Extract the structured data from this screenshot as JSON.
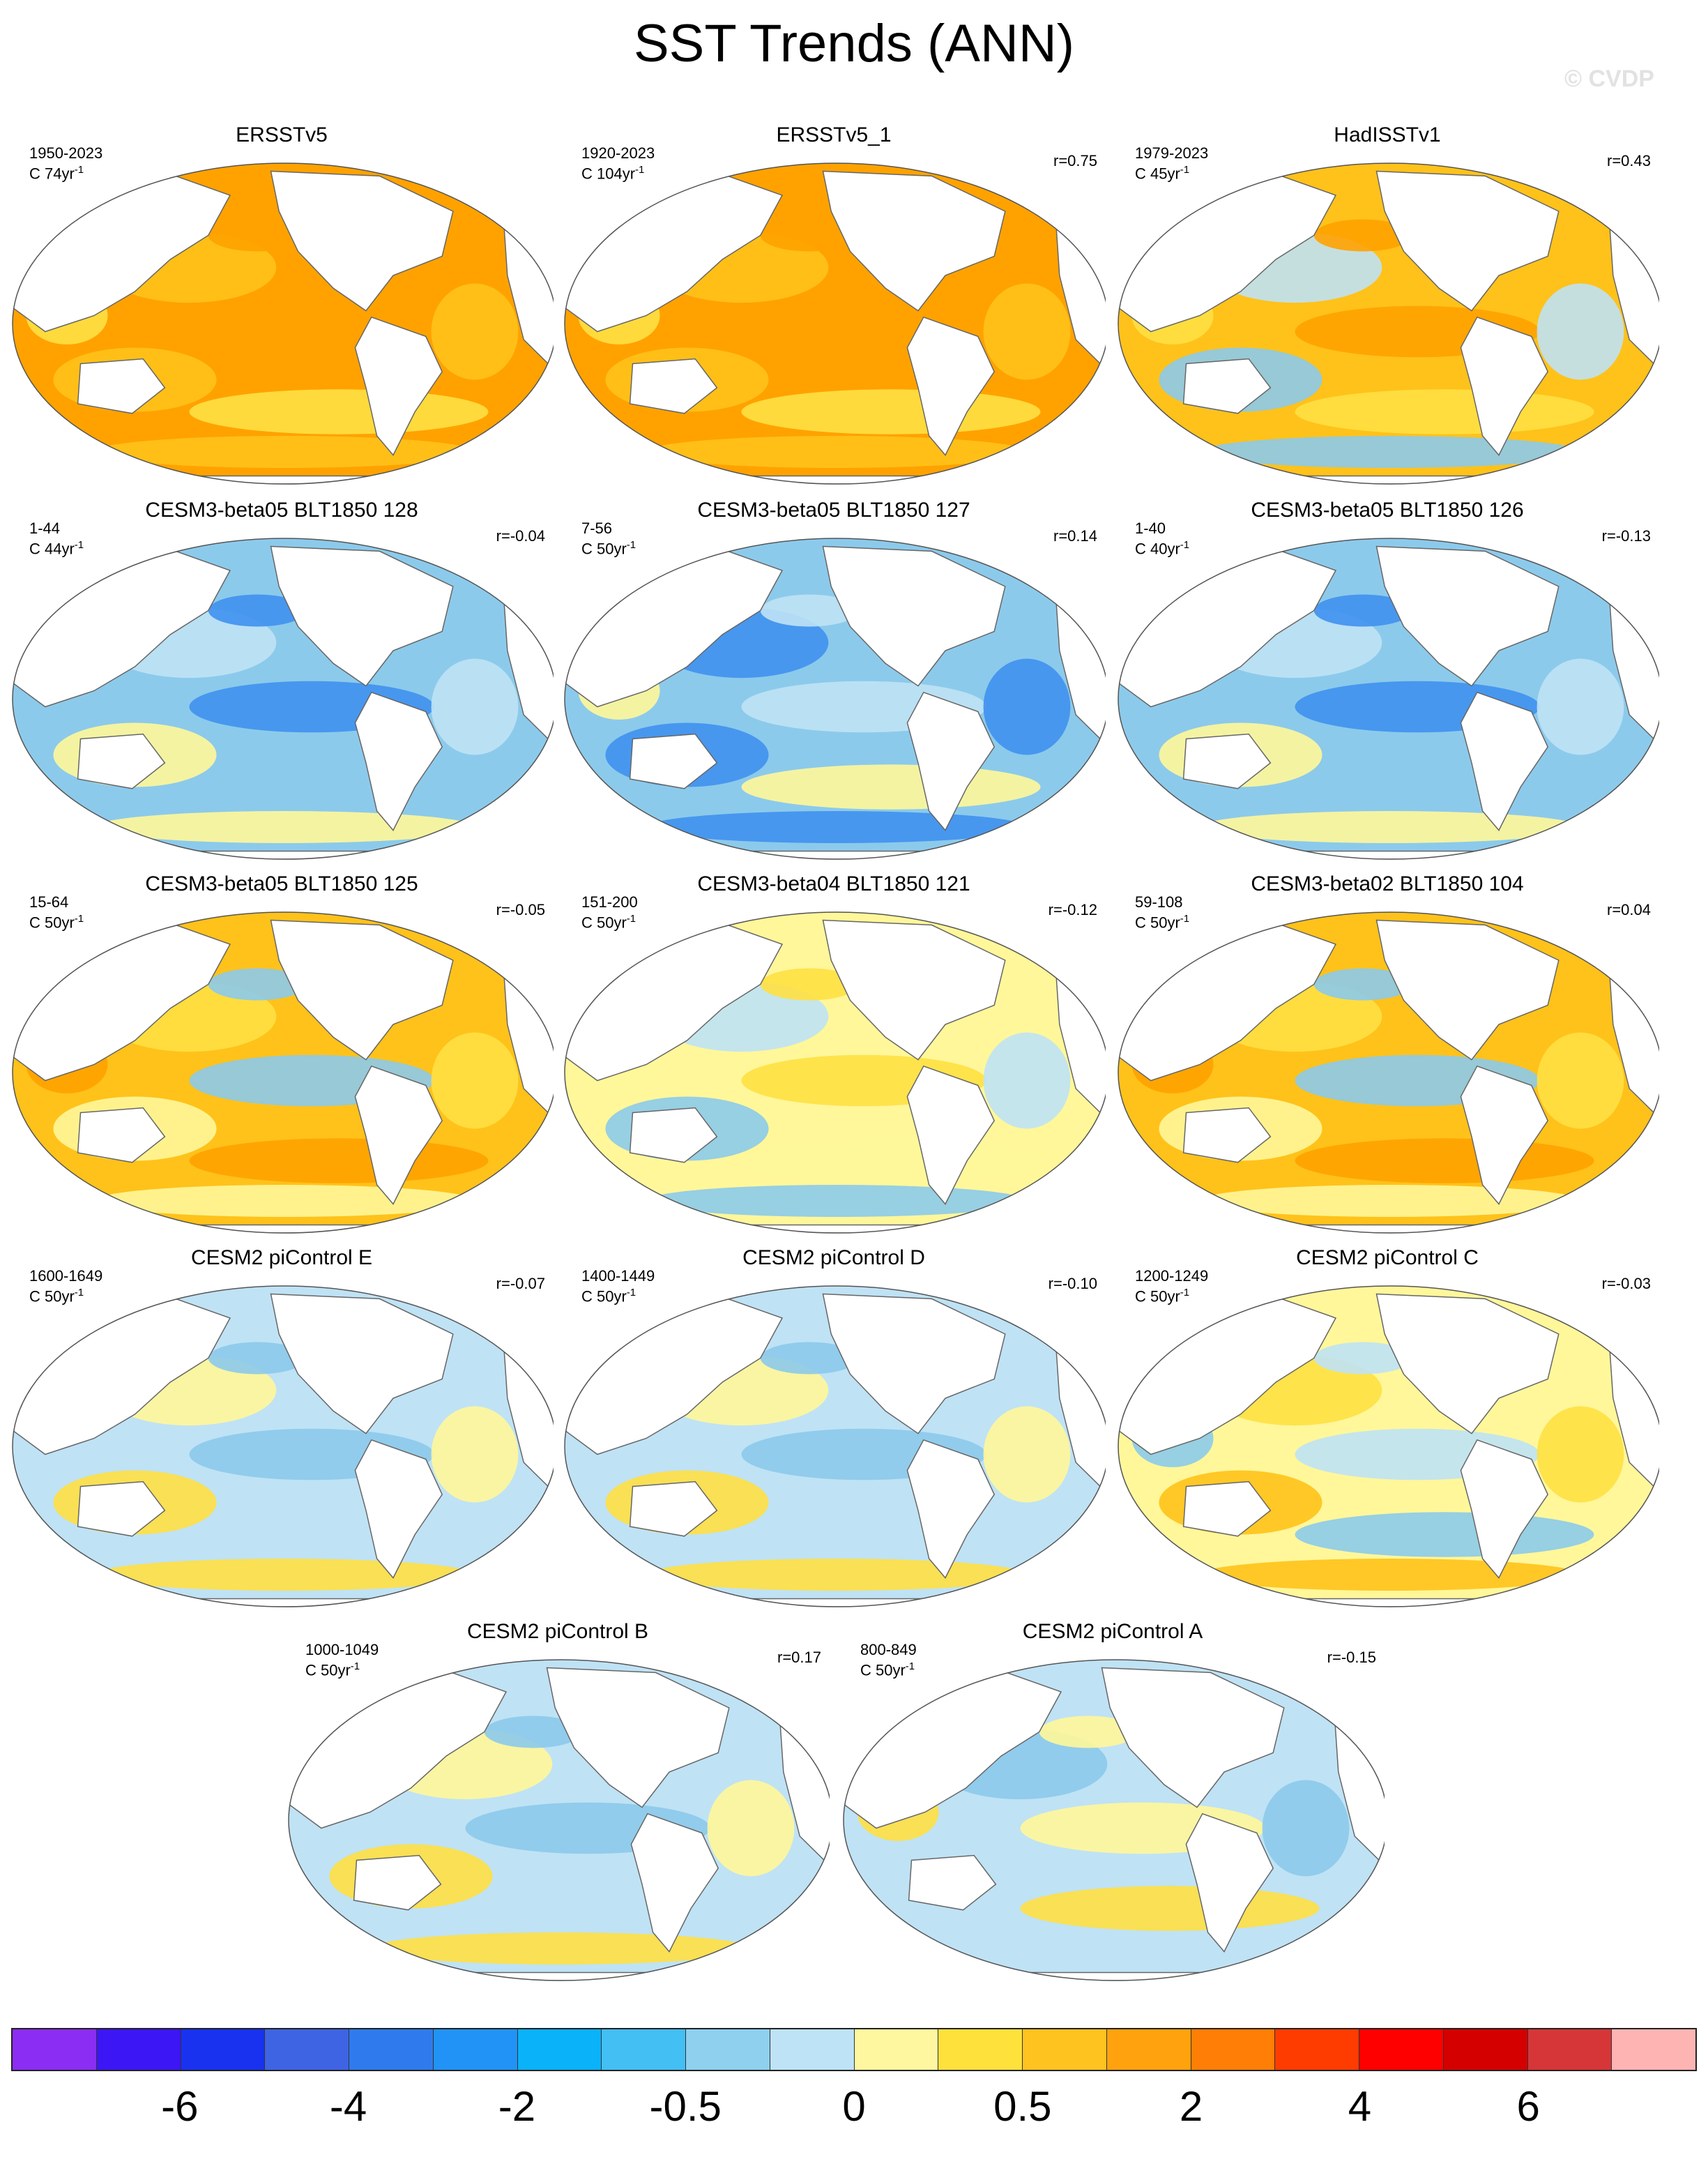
{
  "title": "SST Trends (ANN)",
  "watermark": "© CVDP",
  "colors": {
    "ocean_warm_strong": "#ffa200",
    "ocean_warm": "#ffc21a",
    "ocean_slight_warm": "#ffe043",
    "ocean_neutral_warm": "#fff79a",
    "ocean_neutral_cool": "#bfe2f5",
    "ocean_cool": "#8ccaeb",
    "ocean_cool_strong": "#3f91f0",
    "land": "#ffffff",
    "coast": "#666666"
  },
  "panels": [
    {
      "title": "ERSSTv5",
      "period": "1950-2023",
      "units": "C 74yr",
      "corr": "",
      "pattern": "warm_strong"
    },
    {
      "title": "ERSSTv5_1",
      "period": "1920-2023",
      "units": "C 104yr",
      "corr": "r=0.75",
      "pattern": "warm_strong"
    },
    {
      "title": "HadISSTv1",
      "period": "1979-2023",
      "units": "C 45yr",
      "corr": "r=0.43",
      "pattern": "warm_mixed"
    },
    {
      "title": "CESM3-beta05 BLT1850 128",
      "period": "1-44",
      "units": "C 44yr",
      "corr": "r=-0.04",
      "pattern": "cool"
    },
    {
      "title": "CESM3-beta05 BLT1850 127",
      "period": "7-56",
      "units": "C 50yr",
      "corr": "r=0.14",
      "pattern": "cool_strong"
    },
    {
      "title": "CESM3-beta05 BLT1850 126",
      "period": "1-40",
      "units": "C 40yr",
      "corr": "r=-0.13",
      "pattern": "cool"
    },
    {
      "title": "CESM3-beta05 BLT1850 125",
      "period": "15-64",
      "units": "C 50yr",
      "corr": "r=-0.05",
      "pattern": "warm_mid"
    },
    {
      "title": "CESM3-beta04 BLT1850 121",
      "period": "151-200",
      "units": "C 50yr",
      "corr": "r=-0.12",
      "pattern": "mixed_light"
    },
    {
      "title": "CESM3-beta02 BLT1850 104",
      "period": "59-108",
      "units": "C 50yr",
      "corr": "r=0.04",
      "pattern": "warm_mid"
    },
    {
      "title": "CESM2 piControl E",
      "period": "1600-1649",
      "units": "C 50yr",
      "corr": "r=-0.07",
      "pattern": "mixed"
    },
    {
      "title": "CESM2 piControl D",
      "period": "1400-1449",
      "units": "C 50yr",
      "corr": "r=-0.10",
      "pattern": "mixed"
    },
    {
      "title": "CESM2 piControl C",
      "period": "1200-1249",
      "units": "C 50yr",
      "corr": "r=-0.03",
      "pattern": "mixed_warm"
    },
    {
      "title": "CESM2 piControl B",
      "period": "1000-1049",
      "units": "C 50yr",
      "corr": "r=0.17",
      "pattern": "mixed"
    },
    {
      "title": "CESM2 piControl A",
      "period": "800-849",
      "units": "C 50yr",
      "corr": "r=-0.15",
      "pattern": "mixed_cool"
    }
  ],
  "colorbar": {
    "colors": [
      "#8b2df2",
      "#3d16f5",
      "#1832f0",
      "#3e64e4",
      "#2f7bed",
      "#2193f6",
      "#0ab2fa",
      "#43bff4",
      "#8fd0ef",
      "#bee3f6",
      "#fff7a0",
      "#ffe13c",
      "#ffc320",
      "#ffa20e",
      "#ff7f06",
      "#ff3c00",
      "#ff0000",
      "#d40000",
      "#d63638",
      "#ffb4b4"
    ],
    "labels": [
      "-6",
      "-4",
      "-2",
      "-0.5",
      "0",
      "0.5",
      "2",
      "4",
      "6"
    ]
  }
}
